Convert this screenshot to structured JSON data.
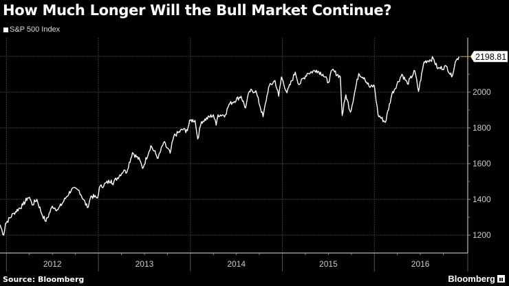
{
  "chart_data": {
    "type": "line",
    "title": "How Much Longer Will the Bull Market Continue?",
    "legend": [
      "S&P 500 Index"
    ],
    "legend_placement": "top-left",
    "xlabel": "",
    "ylabel": "",
    "xlim": [
      2011.93,
      2017.015
    ],
    "ylim": [
      1100,
      2300
    ],
    "x_ticks": [
      "2012",
      "2013",
      "2014",
      "2015",
      "2016"
    ],
    "y_ticks": [
      1200,
      1400,
      1600,
      1800,
      2000
    ],
    "last_value_label": "2198.81",
    "grid": true,
    "colors": {
      "line": "#ffffff",
      "grid": "#3a3a3a",
      "last_value_guide": "#c8a040"
    },
    "series": [
      {
        "name": "S&P 500 Index",
        "points": [
          [
            2011.93,
            1258
          ],
          [
            2011.97,
            1200
          ],
          [
            2011.99,
            1265
          ],
          [
            2012.08,
            1323
          ],
          [
            2012.18,
            1369
          ],
          [
            2012.23,
            1408
          ],
          [
            2012.25,
            1412
          ],
          [
            2012.28,
            1369
          ],
          [
            2012.33,
            1400
          ],
          [
            2012.39,
            1312
          ],
          [
            2012.43,
            1277
          ],
          [
            2012.5,
            1362
          ],
          [
            2012.56,
            1342
          ],
          [
            2012.65,
            1412
          ],
          [
            2012.71,
            1458
          ],
          [
            2012.79,
            1450
          ],
          [
            2012.88,
            1354
          ],
          [
            2012.92,
            1419
          ],
          [
            2012.99,
            1408
          ],
          [
            2013.01,
            1465
          ],
          [
            2013.14,
            1508
          ],
          [
            2013.15,
            1488
          ],
          [
            2013.28,
            1565
          ],
          [
            2013.3,
            1546
          ],
          [
            2013.37,
            1662
          ],
          [
            2013.45,
            1619
          ],
          [
            2013.48,
            1573
          ],
          [
            2013.57,
            1700
          ],
          [
            2013.65,
            1631
          ],
          [
            2013.71,
            1719
          ],
          [
            2013.78,
            1658
          ],
          [
            2013.82,
            1754
          ],
          [
            2013.93,
            1796
          ],
          [
            2013.95,
            1773
          ],
          [
            2014.0,
            1842
          ],
          [
            2014.05,
            1842
          ],
          [
            2014.08,
            1738
          ],
          [
            2014.12,
            1835
          ],
          [
            2014.25,
            1873
          ],
          [
            2014.28,
            1815
          ],
          [
            2014.3,
            1873
          ],
          [
            2014.38,
            1873
          ],
          [
            2014.42,
            1931
          ],
          [
            2014.55,
            1977
          ],
          [
            2014.6,
            1912
          ],
          [
            2014.64,
            2004
          ],
          [
            2014.71,
            2008
          ],
          [
            2014.79,
            1862
          ],
          [
            2014.85,
            2027
          ],
          [
            2014.92,
            2065
          ],
          [
            2014.96,
            1977
          ],
          [
            2014.99,
            2085
          ],
          [
            2015.05,
            1996
          ],
          [
            2015.14,
            2112
          ],
          [
            2015.18,
            2042
          ],
          [
            2015.27,
            2104
          ],
          [
            2015.37,
            2123
          ],
          [
            2015.44,
            2100
          ],
          [
            2015.5,
            2054
          ],
          [
            2015.54,
            2123
          ],
          [
            2015.63,
            2085
          ],
          [
            2015.65,
            1869
          ],
          [
            2015.69,
            1985
          ],
          [
            2015.74,
            1888
          ],
          [
            2015.83,
            2104
          ],
          [
            2015.89,
            2081
          ],
          [
            2015.95,
            2027
          ],
          [
            2016.0,
            2035
          ],
          [
            2016.04,
            1873
          ],
          [
            2016.12,
            1831
          ],
          [
            2016.19,
            1988
          ],
          [
            2016.3,
            2100
          ],
          [
            2016.36,
            2046
          ],
          [
            2016.44,
            2119
          ],
          [
            2016.48,
            2004
          ],
          [
            2016.54,
            2169
          ],
          [
            2016.64,
            2188
          ],
          [
            2016.69,
            2131
          ],
          [
            2016.79,
            2142
          ],
          [
            2016.84,
            2085
          ],
          [
            2016.88,
            2169
          ],
          [
            2016.92,
            2198.81
          ]
        ]
      }
    ]
  },
  "footer": {
    "source": "Source: Bloomberg",
    "brand": "Bloomberg"
  }
}
